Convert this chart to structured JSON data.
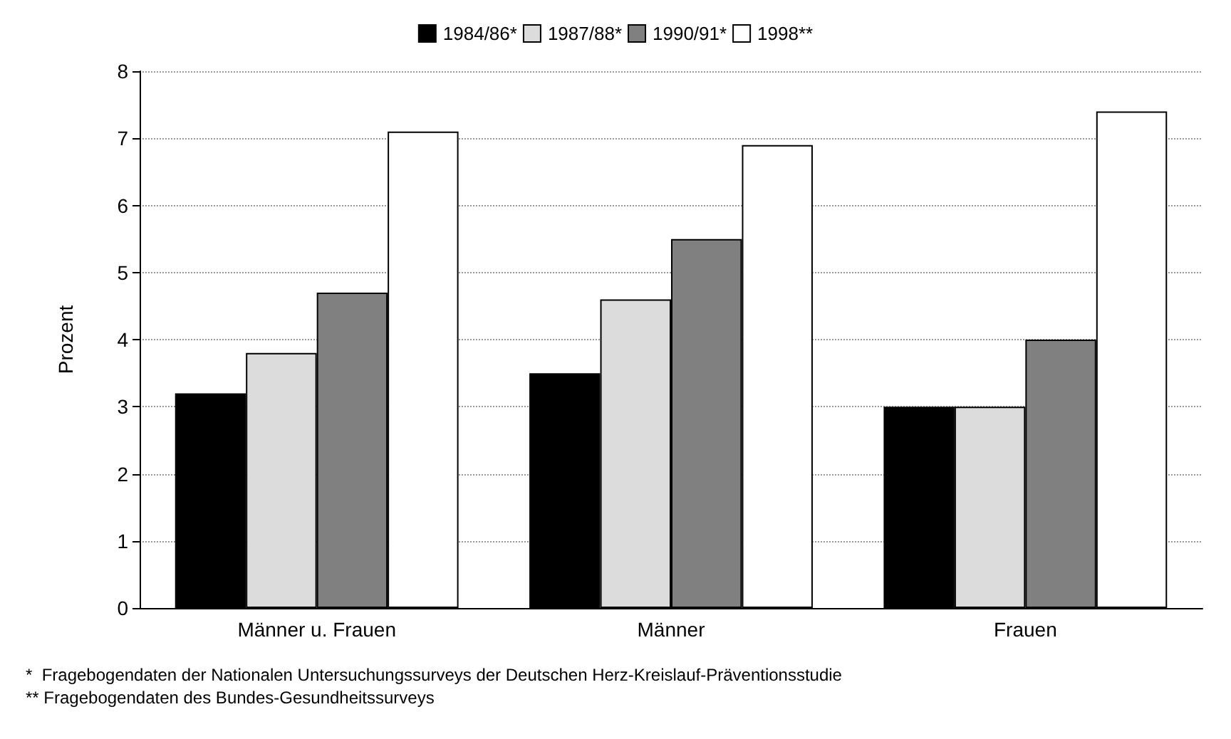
{
  "chart_data": {
    "type": "bar",
    "ylabel": "Prozent",
    "categories": [
      "Männer u. Frauen",
      "Männer",
      "Frauen"
    ],
    "series": [
      {
        "name": "1984/86*",
        "color": "#000000",
        "values": [
          3.2,
          3.5,
          3.0
        ]
      },
      {
        "name": "1987/88*",
        "color": "#dcdcdc",
        "values": [
          3.8,
          4.6,
          3.0
        ]
      },
      {
        "name": "1990/91*",
        "color": "#808080",
        "values": [
          4.7,
          5.5,
          4.0
        ]
      },
      {
        "name": "1998**",
        "color": "#ffffff",
        "values": [
          7.1,
          6.9,
          7.4
        ]
      }
    ],
    "ylim": [
      0,
      8
    ],
    "yticks": [
      0,
      1,
      2,
      3,
      4,
      5,
      6,
      7,
      8
    ],
    "grid": "y",
    "legend": "top",
    "annotations": [
      "*  Fragebogendaten der Nationalen Untersuchungssurveys der Deutschen Herz-Kreislauf-Präventionsstudie",
      "** Fragebogendaten des Bundes-Gesundheitssurveys"
    ]
  }
}
